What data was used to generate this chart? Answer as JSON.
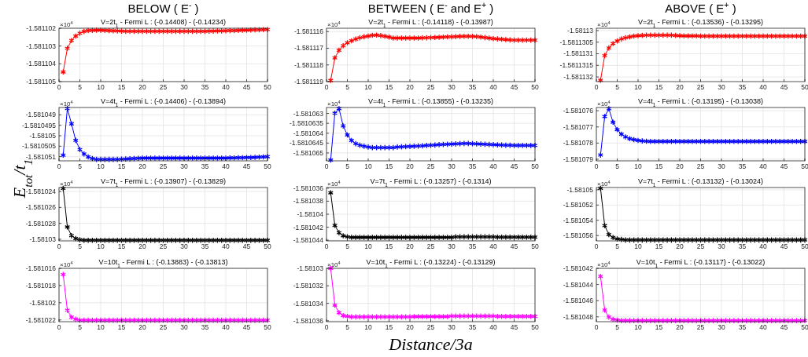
{
  "chart_data": [
    {
      "type": "line",
      "title": "BELOW ( E$^{-}$ )",
      "subtitle": "V=2t$_{1}$ - Fermi L : (-0.14408) - (-0.14234)",
      "annotations": [
        "×10$^{4}$"
      ],
      "grid": true,
      "marker": "cross",
      "xlim": [
        0,
        50
      ],
      "xticks": [
        0,
        5,
        10,
        15,
        20,
        25,
        30,
        35,
        40,
        45,
        50
      ],
      "ylim": [
        -1.581105,
        -1.581102
      ],
      "yticks": [
        -1.581105,
        -1.581104,
        -1.581103,
        -1.581102
      ],
      "x": [
        1,
        2,
        3,
        4,
        5,
        6,
        7,
        8,
        9,
        10,
        11,
        12,
        13,
        14,
        15,
        16,
        17,
        18,
        19,
        20,
        21,
        22,
        23,
        24,
        25,
        26,
        27,
        28,
        29,
        30,
        31,
        32,
        33,
        34,
        35,
        36,
        37,
        38,
        39,
        40,
        41,
        42,
        43,
        44,
        45,
        46,
        47,
        48,
        49,
        50
      ],
      "series": [
        {
          "color": "#ff0000",
          "values": [
            -1.58110446,
            -1.58110313,
            -1.58110269,
            -1.58110244,
            -1.58110228,
            -1.58110218,
            -1.58110213,
            -1.58110212,
            -1.58110211,
            -1.58110211,
            -1.58110212,
            -1.58110213,
            -1.58110214,
            -1.58110215,
            -1.58110216,
            -1.58110217,
            -1.58110217,
            -1.58110217,
            -1.58110217,
            -1.58110217,
            -1.58110217,
            -1.58110217,
            -1.58110217,
            -1.58110217,
            -1.58110217,
            -1.58110217,
            -1.58110217,
            -1.58110217,
            -1.58110217,
            -1.58110217,
            -1.58110217,
            -1.58110217,
            -1.58110217,
            -1.58110217,
            -1.58110217,
            -1.58110216,
            -1.58110216,
            -1.58110215,
            -1.58110215,
            -1.58110214,
            -1.58110213,
            -1.58110213,
            -1.58110212,
            -1.58110211,
            -1.58110211,
            -1.5811021,
            -1.58110209,
            -1.58110209,
            -1.58110208,
            -1.58110207
          ]
        }
      ]
    },
    {
      "type": "line",
      "title": "BETWEEN ( E$^{-}$ and E$^{+}$ )",
      "subtitle": "V=2t$_{1}$ - Fermi L : (-0.14118) - (-0.13987)",
      "annotations": [
        "×10$^{4}$"
      ],
      "grid": true,
      "marker": "cross",
      "xlim": [
        0,
        50
      ],
      "xticks": [
        0,
        5,
        10,
        15,
        20,
        25,
        30,
        35,
        40,
        45,
        50
      ],
      "ylim": [
        -1.581119,
        -1.5811158
      ],
      "yticks": [
        -1.581119,
        -1.581118,
        -1.581117,
        -1.581116
      ],
      "x": [
        1,
        2,
        3,
        4,
        5,
        6,
        7,
        8,
        9,
        10,
        11,
        12,
        13,
        14,
        15,
        16,
        17,
        18,
        19,
        20,
        21,
        22,
        23,
        24,
        25,
        26,
        27,
        28,
        29,
        30,
        31,
        32,
        33,
        34,
        35,
        36,
        37,
        38,
        39,
        40,
        41,
        42,
        43,
        44,
        45,
        46,
        47,
        48,
        49,
        50
      ],
      "series": [
        {
          "color": "#ff0000",
          "values": [
            -1.58111893,
            -1.58111758,
            -1.58111712,
            -1.58111685,
            -1.58111667,
            -1.58111655,
            -1.58111645,
            -1.58111637,
            -1.58111631,
            -1.58111627,
            -1.58111622,
            -1.58111621,
            -1.58111624,
            -1.58111628,
            -1.58111633,
            -1.58111639,
            -1.58111639,
            -1.58111639,
            -1.58111639,
            -1.58111639,
            -1.58111639,
            -1.58111639,
            -1.58111638,
            -1.58111637,
            -1.58111636,
            -1.58111635,
            -1.58111634,
            -1.58111633,
            -1.58111632,
            -1.58111631,
            -1.5811163,
            -1.58111629,
            -1.58111628,
            -1.58111628,
            -1.58111629,
            -1.5811163,
            -1.58111633,
            -1.58111636,
            -1.58111639,
            -1.58111642,
            -1.58111644,
            -1.58111646,
            -1.58111648,
            -1.5811165,
            -1.58111651,
            -1.58111651,
            -1.58111651,
            -1.58111651,
            -1.58111651,
            -1.58111651
          ]
        }
      ]
    },
    {
      "type": "line",
      "title": "ABOVE ( E$^{+}$ )",
      "subtitle": "V=2t$_{1}$ - Fermi L : (-0.13536) - (-0.13295)",
      "annotations": [
        "×10$^{4}$"
      ],
      "grid": true,
      "marker": "cross",
      "xlim": [
        0,
        50
      ],
      "xticks": [
        0,
        5,
        10,
        15,
        20,
        25,
        30,
        35,
        40,
        45,
        50
      ],
      "ylim": [
        -1.5811322,
        -1.5811299
      ],
      "yticks": [
        -1.581132,
        -1.5811315,
        -1.581131,
        -1.5811305,
        -1.58113
      ],
      "x": [
        1,
        2,
        3,
        4,
        5,
        6,
        7,
        8,
        9,
        10,
        11,
        12,
        13,
        14,
        15,
        16,
        17,
        18,
        19,
        20,
        21,
        22,
        23,
        24,
        25,
        26,
        27,
        28,
        29,
        30,
        31,
        32,
        33,
        34,
        35,
        36,
        37,
        38,
        39,
        40,
        41,
        42,
        43,
        44,
        45,
        46,
        47,
        48,
        49,
        50
      ],
      "series": [
        {
          "color": "#ff0000",
          "values": [
            -1.58113214,
            -1.58113108,
            -1.58113075,
            -1.58113056,
            -1.58113045,
            -1.58113036,
            -1.58113031,
            -1.58113027,
            -1.58113024,
            -1.58113022,
            -1.58113021,
            -1.5811302,
            -1.5811302,
            -1.5811302,
            -1.5811302,
            -1.5811302,
            -1.5811302,
            -1.5811302,
            -1.58113021,
            -1.58113022,
            -1.58113023,
            -1.58113023,
            -1.58113023,
            -1.58113023,
            -1.58113024,
            -1.58113024,
            -1.58113024,
            -1.58113024,
            -1.58113024,
            -1.58113024,
            -1.58113024,
            -1.58113024,
            -1.58113024,
            -1.58113024,
            -1.58113024,
            -1.58113024,
            -1.58113024,
            -1.58113024,
            -1.58113024,
            -1.58113024,
            -1.58113024,
            -1.58113024,
            -1.58113024,
            -1.58113024,
            -1.58113024,
            -1.58113024,
            -1.58113024,
            -1.58113024,
            -1.58113024,
            -1.58113024
          ]
        }
      ]
    },
    {
      "type": "line",
      "title": "V=4t$_{1}$ - Fermi L : (-0.14406) - (-0.13894)",
      "ylabel": "E$_{tot}$/t$_{1}$",
      "annotations": [
        "×10$^{4}$"
      ],
      "grid": true,
      "marker": "cross",
      "xlim": [
        0,
        50
      ],
      "xticks": [
        0,
        5,
        10,
        15,
        20,
        25,
        30,
        35,
        40,
        45,
        50
      ],
      "ylim": [
        -1.5810512,
        -1.58104865
      ],
      "yticks": [
        -1.581051,
        -1.5810505,
        -1.58105,
        -1.5810495,
        -1.581049
      ],
      "x": [
        1,
        2,
        3,
        4,
        5,
        6,
        7,
        8,
        9,
        10,
        11,
        12,
        13,
        14,
        15,
        16,
        17,
        18,
        19,
        20,
        21,
        22,
        23,
        24,
        25,
        26,
        27,
        28,
        29,
        30,
        31,
        32,
        33,
        34,
        35,
        36,
        37,
        38,
        39,
        40,
        41,
        42,
        43,
        44,
        45,
        46,
        47,
        48,
        49,
        50
      ],
      "series": [
        {
          "color": "#0000ff",
          "values": [
            -1.58105093,
            -1.5810487,
            -1.58104943,
            -1.58105022,
            -1.58105066,
            -1.58105087,
            -1.58105101,
            -1.58105109,
            -1.58105113,
            -1.58105113,
            -1.58105113,
            -1.58105113,
            -1.58105113,
            -1.58105113,
            -1.58105112,
            -1.58105111,
            -1.5810511,
            -1.58105109,
            -1.58105108,
            -1.58105107,
            -1.58105107,
            -1.58105107,
            -1.58105107,
            -1.58105107,
            -1.58105107,
            -1.58105107,
            -1.58105107,
            -1.58105107,
            -1.58105107,
            -1.58105107,
            -1.58105107,
            -1.58105107,
            -1.58105107,
            -1.58105107,
            -1.58105107,
            -1.58105107,
            -1.58105107,
            -1.58105107,
            -1.58105107,
            -1.58105107,
            -1.58105106,
            -1.58105106,
            -1.58105105,
            -1.58105105,
            -1.58105104,
            -1.58105104,
            -1.58105103,
            -1.58105102,
            -1.58105101,
            -1.581051
          ]
        }
      ]
    },
    {
      "type": "line",
      "title": "V=4t$_{1}$ - Fermi L : (-0.13855) - (-0.13235)",
      "annotations": [
        "×10$^{4}$"
      ],
      "grid": true,
      "marker": "cross",
      "xlim": [
        0,
        50
      ],
      "xticks": [
        0,
        5,
        10,
        15,
        20,
        25,
        30,
        35,
        40,
        45,
        50
      ],
      "ylim": [
        -1.5810654,
        -1.5810627
      ],
      "yticks": [
        -1.581065,
        -1.5810645,
        -1.581064,
        -1.5810635,
        -1.581063
      ],
      "x": [
        1,
        2,
        3,
        4,
        5,
        6,
        7,
        8,
        9,
        10,
        11,
        12,
        13,
        14,
        15,
        16,
        17,
        18,
        19,
        20,
        21,
        22,
        23,
        24,
        25,
        26,
        27,
        28,
        29,
        30,
        31,
        32,
        33,
        34,
        35,
        36,
        37,
        38,
        39,
        40,
        41,
        42,
        43,
        44,
        45,
        46,
        47,
        48,
        49,
        50
      ],
      "series": [
        {
          "color": "#0000ff",
          "values": [
            -1.58106536,
            -1.58106299,
            -1.58106276,
            -1.58106363,
            -1.58106409,
            -1.58106437,
            -1.58106453,
            -1.58106461,
            -1.58106466,
            -1.5810647,
            -1.58106473,
            -1.58106473,
            -1.58106473,
            -1.58106473,
            -1.58106473,
            -1.58106473,
            -1.5810647,
            -1.58106469,
            -1.58106468,
            -1.58106467,
            -1.58106466,
            -1.58106465,
            -1.58106464,
            -1.58106462,
            -1.58106461,
            -1.5810646,
            -1.58106458,
            -1.58106457,
            -1.58106456,
            -1.58106455,
            -1.58106454,
            -1.58106453,
            -1.58106452,
            -1.58106452,
            -1.58106453,
            -1.58106454,
            -1.58106455,
            -1.58106456,
            -1.58106457,
            -1.58106458,
            -1.58106459,
            -1.5810646,
            -1.58106461,
            -1.58106461,
            -1.58106462,
            -1.58106462,
            -1.58106462,
            -1.58106462,
            -1.58106462,
            -1.58106462
          ]
        }
      ]
    },
    {
      "type": "line",
      "title": "V=4t$_{1}$ - Fermi L : (-0.13195) - (-0.13038)",
      "annotations": [
        "×10$^{4}$"
      ],
      "grid": true,
      "marker": "cross",
      "xlim": [
        0,
        50
      ],
      "xticks": [
        0,
        5,
        10,
        15,
        20,
        25,
        30,
        35,
        40,
        45,
        50
      ],
      "ylim": [
        -1.5810791,
        -1.5810758
      ],
      "yticks": [
        -1.581079,
        -1.581078,
        -1.581077,
        -1.581076
      ],
      "x": [
        1,
        2,
        3,
        4,
        5,
        6,
        7,
        8,
        9,
        10,
        11,
        12,
        13,
        14,
        15,
        16,
        17,
        18,
        19,
        20,
        21,
        22,
        23,
        24,
        25,
        26,
        27,
        28,
        29,
        30,
        31,
        32,
        33,
        34,
        35,
        36,
        37,
        38,
        39,
        40,
        41,
        42,
        43,
        44,
        45,
        46,
        47,
        48,
        49,
        50
      ],
      "series": [
        {
          "color": "#0000ff",
          "values": [
            -1.58107874,
            -1.58107636,
            -1.58107588,
            -1.58107671,
            -1.58107717,
            -1.58107745,
            -1.58107762,
            -1.58107773,
            -1.58107779,
            -1.58107784,
            -1.58107787,
            -1.58107789,
            -1.5810779,
            -1.5810779,
            -1.5810779,
            -1.5810779,
            -1.5810779,
            -1.5810779,
            -1.5810779,
            -1.5810779,
            -1.5810779,
            -1.5810779,
            -1.5810779,
            -1.5810779,
            -1.5810779,
            -1.5810779,
            -1.5810779,
            -1.5810779,
            -1.5810779,
            -1.5810779,
            -1.5810779,
            -1.5810779,
            -1.5810779,
            -1.5810779,
            -1.5810779,
            -1.5810779,
            -1.5810779,
            -1.5810779,
            -1.5810779,
            -1.5810779,
            -1.5810779,
            -1.5810779,
            -1.5810779,
            -1.5810779,
            -1.5810779,
            -1.5810779,
            -1.5810779,
            -1.5810779,
            -1.5810779,
            -1.5810779
          ]
        }
      ]
    },
    {
      "type": "line",
      "title": "V=7t$_{1}$ - Fermi L : (-0.13907) - (-0.13829)",
      "annotations": [
        "×10$^{4}$"
      ],
      "grid": true,
      "marker": "cross",
      "xlim": [
        0,
        50
      ],
      "xticks": [
        0,
        5,
        10,
        15,
        20,
        25,
        30,
        35,
        40,
        45,
        50
      ],
      "ylim": [
        -1.5810302,
        -1.5810235
      ],
      "yticks": [
        -1.58103,
        -1.581028,
        -1.581026,
        -1.581024
      ],
      "x": [
        1,
        2,
        3,
        4,
        5,
        6,
        7,
        8,
        9,
        10,
        11,
        12,
        13,
        14,
        15,
        16,
        17,
        18,
        19,
        20,
        21,
        22,
        23,
        24,
        25,
        26,
        27,
        28,
        29,
        30,
        31,
        32,
        33,
        34,
        35,
        36,
        37,
        38,
        39,
        40,
        41,
        42,
        43,
        44,
        45,
        46,
        47,
        48,
        49,
        50
      ],
      "series": [
        {
          "color": "#000000",
          "values": [
            -1.58102361,
            -1.58102845,
            -1.58102955,
            -1.5810299,
            -1.58103006,
            -1.58103013,
            -1.58103013,
            -1.58103013,
            -1.58103013,
            -1.58103013,
            -1.58103013,
            -1.58103013,
            -1.58103013,
            -1.58103013,
            -1.58103013,
            -1.58103013,
            -1.58103013,
            -1.58103013,
            -1.58103013,
            -1.58103013,
            -1.58103013,
            -1.58103013,
            -1.58103013,
            -1.58103013,
            -1.58103013,
            -1.58103013,
            -1.58103013,
            -1.58103013,
            -1.58103013,
            -1.58103013,
            -1.58103013,
            -1.58103013,
            -1.58103013,
            -1.58103013,
            -1.58103013,
            -1.58103013,
            -1.58103013,
            -1.58103013,
            -1.58103013,
            -1.58103013,
            -1.58103013,
            -1.58103013,
            -1.58103013,
            -1.58103013,
            -1.58103013,
            -1.58103013,
            -1.58103013,
            -1.58103013,
            -1.58103013,
            -1.58103013
          ]
        }
      ]
    },
    {
      "type": "line",
      "title": "V=7t$_{1}$ - Fermi L : (-0.13257) - (-0.1314)",
      "annotations": [
        "×10$^{4}$"
      ],
      "grid": true,
      "marker": "cross",
      "xlim": [
        0,
        50
      ],
      "xticks": [
        0,
        5,
        10,
        15,
        20,
        25,
        30,
        35,
        40,
        45,
        50
      ],
      "ylim": [
        -1.5810441,
        -1.5810359
      ],
      "yticks": [
        -1.581044,
        -1.581042,
        -1.58104,
        -1.581038,
        -1.581036
      ],
      "x": [
        1,
        2,
        3,
        4,
        5,
        6,
        7,
        8,
        9,
        10,
        11,
        12,
        13,
        14,
        15,
        16,
        17,
        18,
        19,
        20,
        21,
        22,
        23,
        24,
        25,
        26,
        27,
        28,
        29,
        30,
        31,
        32,
        33,
        34,
        35,
        36,
        37,
        38,
        39,
        40,
        41,
        42,
        43,
        44,
        45,
        46,
        47,
        48,
        49,
        50
      ],
      "series": [
        {
          "color": "#000000",
          "values": [
            -1.58103671,
            -1.58104171,
            -1.58104285,
            -1.58104332,
            -1.58104348,
            -1.58104356,
            -1.58104356,
            -1.58104356,
            -1.58104356,
            -1.58104356,
            -1.58104356,
            -1.58104356,
            -1.58104356,
            -1.58104356,
            -1.58104356,
            -1.58104356,
            -1.58104356,
            -1.58104356,
            -1.58104356,
            -1.58104356,
            -1.58104356,
            -1.58104356,
            -1.58104356,
            -1.58104356,
            -1.58104356,
            -1.58104356,
            -1.58104356,
            -1.58104356,
            -1.58104356,
            -1.58104356,
            -1.58104348,
            -1.58104348,
            -1.58104348,
            -1.58104348,
            -1.58104348,
            -1.58104348,
            -1.58104348,
            -1.58104348,
            -1.58104348,
            -1.58104348,
            -1.58104352,
            -1.58104352,
            -1.58104352,
            -1.58104352,
            -1.58104352,
            -1.58104352,
            -1.58104352,
            -1.58104352,
            -1.58104352,
            -1.58104352
          ]
        }
      ]
    },
    {
      "type": "line",
      "title": "V=7t$_{1}$ - Fermi L : (-0.13132) - (-0.13024)",
      "annotations": [
        "×10$^{4}$"
      ],
      "grid": true,
      "marker": "cross",
      "xlim": [
        0,
        50
      ],
      "xticks": [
        0,
        5,
        10,
        15,
        20,
        25,
        30,
        35,
        40,
        45,
        50
      ],
      "ylim": [
        -1.5810567,
        -1.5810497
      ],
      "yticks": [
        -1.581056,
        -1.581054,
        -1.581052,
        -1.58105
      ],
      "x": [
        1,
        2,
        3,
        4,
        5,
        6,
        7,
        8,
        9,
        10,
        11,
        12,
        13,
        14,
        15,
        16,
        17,
        18,
        19,
        20,
        21,
        22,
        23,
        24,
        25,
        26,
        27,
        28,
        29,
        30,
        31,
        32,
        33,
        34,
        35,
        36,
        37,
        38,
        39,
        40,
        41,
        42,
        43,
        44,
        45,
        46,
        47,
        48,
        49,
        50
      ],
      "series": [
        {
          "color": "#000000",
          "values": [
            -1.5810498,
            -1.5810547,
            -1.58105587,
            -1.58105627,
            -1.58105644,
            -1.58105651,
            -1.58105658,
            -1.58105658,
            -1.58105658,
            -1.58105658,
            -1.58105658,
            -1.58105658,
            -1.58105658,
            -1.58105658,
            -1.58105658,
            -1.58105658,
            -1.58105658,
            -1.58105658,
            -1.58105658,
            -1.58105658,
            -1.58105658,
            -1.58105658,
            -1.58105658,
            -1.58105658,
            -1.58105658,
            -1.58105658,
            -1.58105658,
            -1.58105658,
            -1.58105658,
            -1.58105658,
            -1.58105658,
            -1.58105658,
            -1.58105658,
            -1.58105658,
            -1.58105658,
            -1.58105658,
            -1.58105658,
            -1.58105658,
            -1.58105658,
            -1.58105658,
            -1.58105658,
            -1.58105658,
            -1.58105658,
            -1.58105658,
            -1.58105658,
            -1.58105658,
            -1.58105658,
            -1.58105658,
            -1.58105658,
            -1.58105658
          ]
        }
      ]
    },
    {
      "type": "line",
      "title": "V=10t$_{1}$ - Fermi L : (-0.13883) - (-0.13813)",
      "annotations": [
        "×10$^{4}$"
      ],
      "grid": true,
      "marker": "cross",
      "xlim": [
        0,
        50
      ],
      "xticks": [
        0,
        5,
        10,
        15,
        20,
        25,
        30,
        35,
        40,
        45,
        50
      ],
      "ylim": [
        -1.5810222,
        -1.581016
      ],
      "yticks": [
        -1.581022,
        -1.58102,
        -1.581018,
        -1.581016
      ],
      "x": [
        1,
        2,
        3,
        4,
        5,
        6,
        7,
        8,
        9,
        10,
        11,
        12,
        13,
        14,
        15,
        16,
        17,
        18,
        19,
        20,
        21,
        22,
        23,
        24,
        25,
        26,
        27,
        28,
        29,
        30,
        31,
        32,
        33,
        34,
        35,
        36,
        37,
        38,
        39,
        40,
        41,
        42,
        43,
        44,
        45,
        46,
        47,
        48,
        49,
        50
      ],
      "series": [
        {
          "color": "#ff00ff",
          "values": [
            -1.58101672,
            -1.58102087,
            -1.58102167,
            -1.58102191,
            -1.58102203,
            -1.58102203,
            -1.58102203,
            -1.58102203,
            -1.58102203,
            -1.58102203,
            -1.58102203,
            -1.58102203,
            -1.58102203,
            -1.58102203,
            -1.58102203,
            -1.58102203,
            -1.58102203,
            -1.58102203,
            -1.58102203,
            -1.58102203,
            -1.58102203,
            -1.58102203,
            -1.58102203,
            -1.58102203,
            -1.58102203,
            -1.58102203,
            -1.58102203,
            -1.58102203,
            -1.58102203,
            -1.58102203,
            -1.58102203,
            -1.58102203,
            -1.58102203,
            -1.58102203,
            -1.58102203,
            -1.58102203,
            -1.58102203,
            -1.58102203,
            -1.58102203,
            -1.58102203,
            -1.58102203,
            -1.58102203,
            -1.58102203,
            -1.58102203,
            -1.58102203,
            -1.58102203,
            -1.58102203,
            -1.58102203,
            -1.58102203,
            -1.58102203
          ]
        }
      ]
    },
    {
      "type": "line",
      "title": "V=10t$_{1}$ - Fermi L : (-0.13224) - (-0.13129)",
      "xlabel": "Distance/3a",
      "annotations": [
        "×10$^{4}$"
      ],
      "grid": true,
      "marker": "cross",
      "xlim": [
        0,
        50
      ],
      "xticks": [
        0,
        5,
        10,
        15,
        20,
        25,
        30,
        35,
        40,
        45,
        50
      ],
      "ylim": [
        -1.5810361,
        -1.58103
      ],
      "yticks": [
        -1.581036,
        -1.581034,
        -1.581032,
        -1.58103
      ],
      "x": [
        1,
        2,
        3,
        4,
        5,
        6,
        7,
        8,
        9,
        10,
        11,
        12,
        13,
        14,
        15,
        16,
        17,
        18,
        19,
        20,
        21,
        22,
        23,
        24,
        25,
        26,
        27,
        28,
        29,
        30,
        31,
        32,
        33,
        34,
        35,
        36,
        37,
        38,
        39,
        40,
        41,
        42,
        43,
        44,
        45,
        46,
        47,
        48,
        49,
        50
      ],
      "series": [
        {
          "color": "#ff00ff",
          "values": [
            -1.58103,
            -1.58103421,
            -1.58103507,
            -1.5810354,
            -1.58103549,
            -1.58103555,
            -1.58103555,
            -1.58103555,
            -1.58103555,
            -1.58103555,
            -1.58103555,
            -1.58103555,
            -1.58103555,
            -1.58103555,
            -1.58103555,
            -1.58103555,
            -1.58103555,
            -1.58103555,
            -1.58103555,
            -1.58103555,
            -1.58103552,
            -1.58103552,
            -1.58103552,
            -1.58103552,
            -1.58103552,
            -1.58103552,
            -1.58103552,
            -1.58103552,
            -1.58103552,
            -1.58103546,
            -1.58103546,
            -1.58103546,
            -1.58103546,
            -1.58103546,
            -1.58103546,
            -1.58103546,
            -1.58103546,
            -1.58103546,
            -1.58103546,
            -1.58103546,
            -1.5810355,
            -1.5810355,
            -1.5810355,
            -1.5810355,
            -1.5810355,
            -1.5810355,
            -1.5810355,
            -1.5810355,
            -1.5810355,
            -1.5810355
          ]
        }
      ]
    },
    {
      "type": "line",
      "title": "V=10t$_{1}$ - Fermi L : (-0.13117) - (-0.13022)",
      "annotations": [
        "×10$^{4}$"
      ],
      "grid": true,
      "marker": "cross",
      "xlim": [
        0,
        50
      ],
      "xticks": [
        0,
        5,
        10,
        15,
        20,
        25,
        30,
        35,
        40,
        45,
        50
      ],
      "ylim": [
        -1.5810486,
        -1.581042
      ],
      "yticks": [
        -1.581048,
        -1.581046,
        -1.581044,
        -1.581042
      ],
      "x": [
        1,
        2,
        3,
        4,
        5,
        6,
        7,
        8,
        9,
        10,
        11,
        12,
        13,
        14,
        15,
        16,
        17,
        18,
        19,
        20,
        21,
        22,
        23,
        24,
        25,
        26,
        27,
        28,
        29,
        30,
        31,
        32,
        33,
        34,
        35,
        36,
        37,
        38,
        39,
        40,
        41,
        42,
        43,
        44,
        45,
        46,
        47,
        48,
        49,
        50
      ],
      "series": [
        {
          "color": "#ff00ff",
          "values": [
            -1.58104299,
            -1.58104716,
            -1.58104803,
            -1.58104831,
            -1.58104841,
            -1.58104847,
            -1.58104847,
            -1.58104847,
            -1.58104847,
            -1.58104847,
            -1.58104847,
            -1.58104847,
            -1.58104847,
            -1.58104847,
            -1.58104847,
            -1.58104847,
            -1.58104847,
            -1.58104847,
            -1.58104847,
            -1.58104847,
            -1.58104847,
            -1.58104847,
            -1.58104847,
            -1.58104847,
            -1.58104847,
            -1.58104847,
            -1.58104847,
            -1.58104847,
            -1.58104847,
            -1.58104847,
            -1.58104847,
            -1.58104847,
            -1.58104847,
            -1.58104847,
            -1.58104847,
            -1.58104847,
            -1.58104847,
            -1.58104847,
            -1.58104847,
            -1.58104847,
            -1.58104847,
            -1.58104847,
            -1.58104847,
            -1.58104847,
            -1.58104847,
            -1.58104847,
            -1.58104847,
            -1.58104847,
            -1.58104847,
            -1.58104847
          ]
        }
      ]
    }
  ]
}
